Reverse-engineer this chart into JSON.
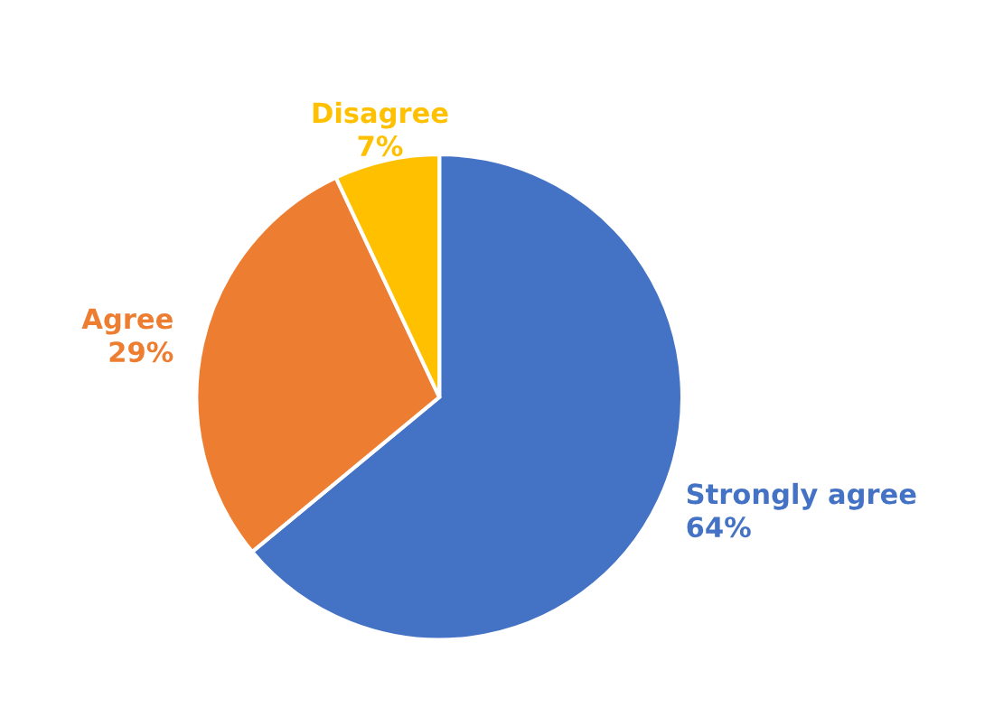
{
  "chart_data": {
    "type": "pie",
    "categories": [
      "Strongly agree",
      "Agree",
      "Disagree"
    ],
    "values": [
      64,
      29,
      7
    ],
    "value_labels": [
      "64%",
      "29%",
      "7%"
    ],
    "colors": [
      "#4472c4",
      "#ed7d31",
      "#ffc000"
    ],
    "legend": false
  }
}
